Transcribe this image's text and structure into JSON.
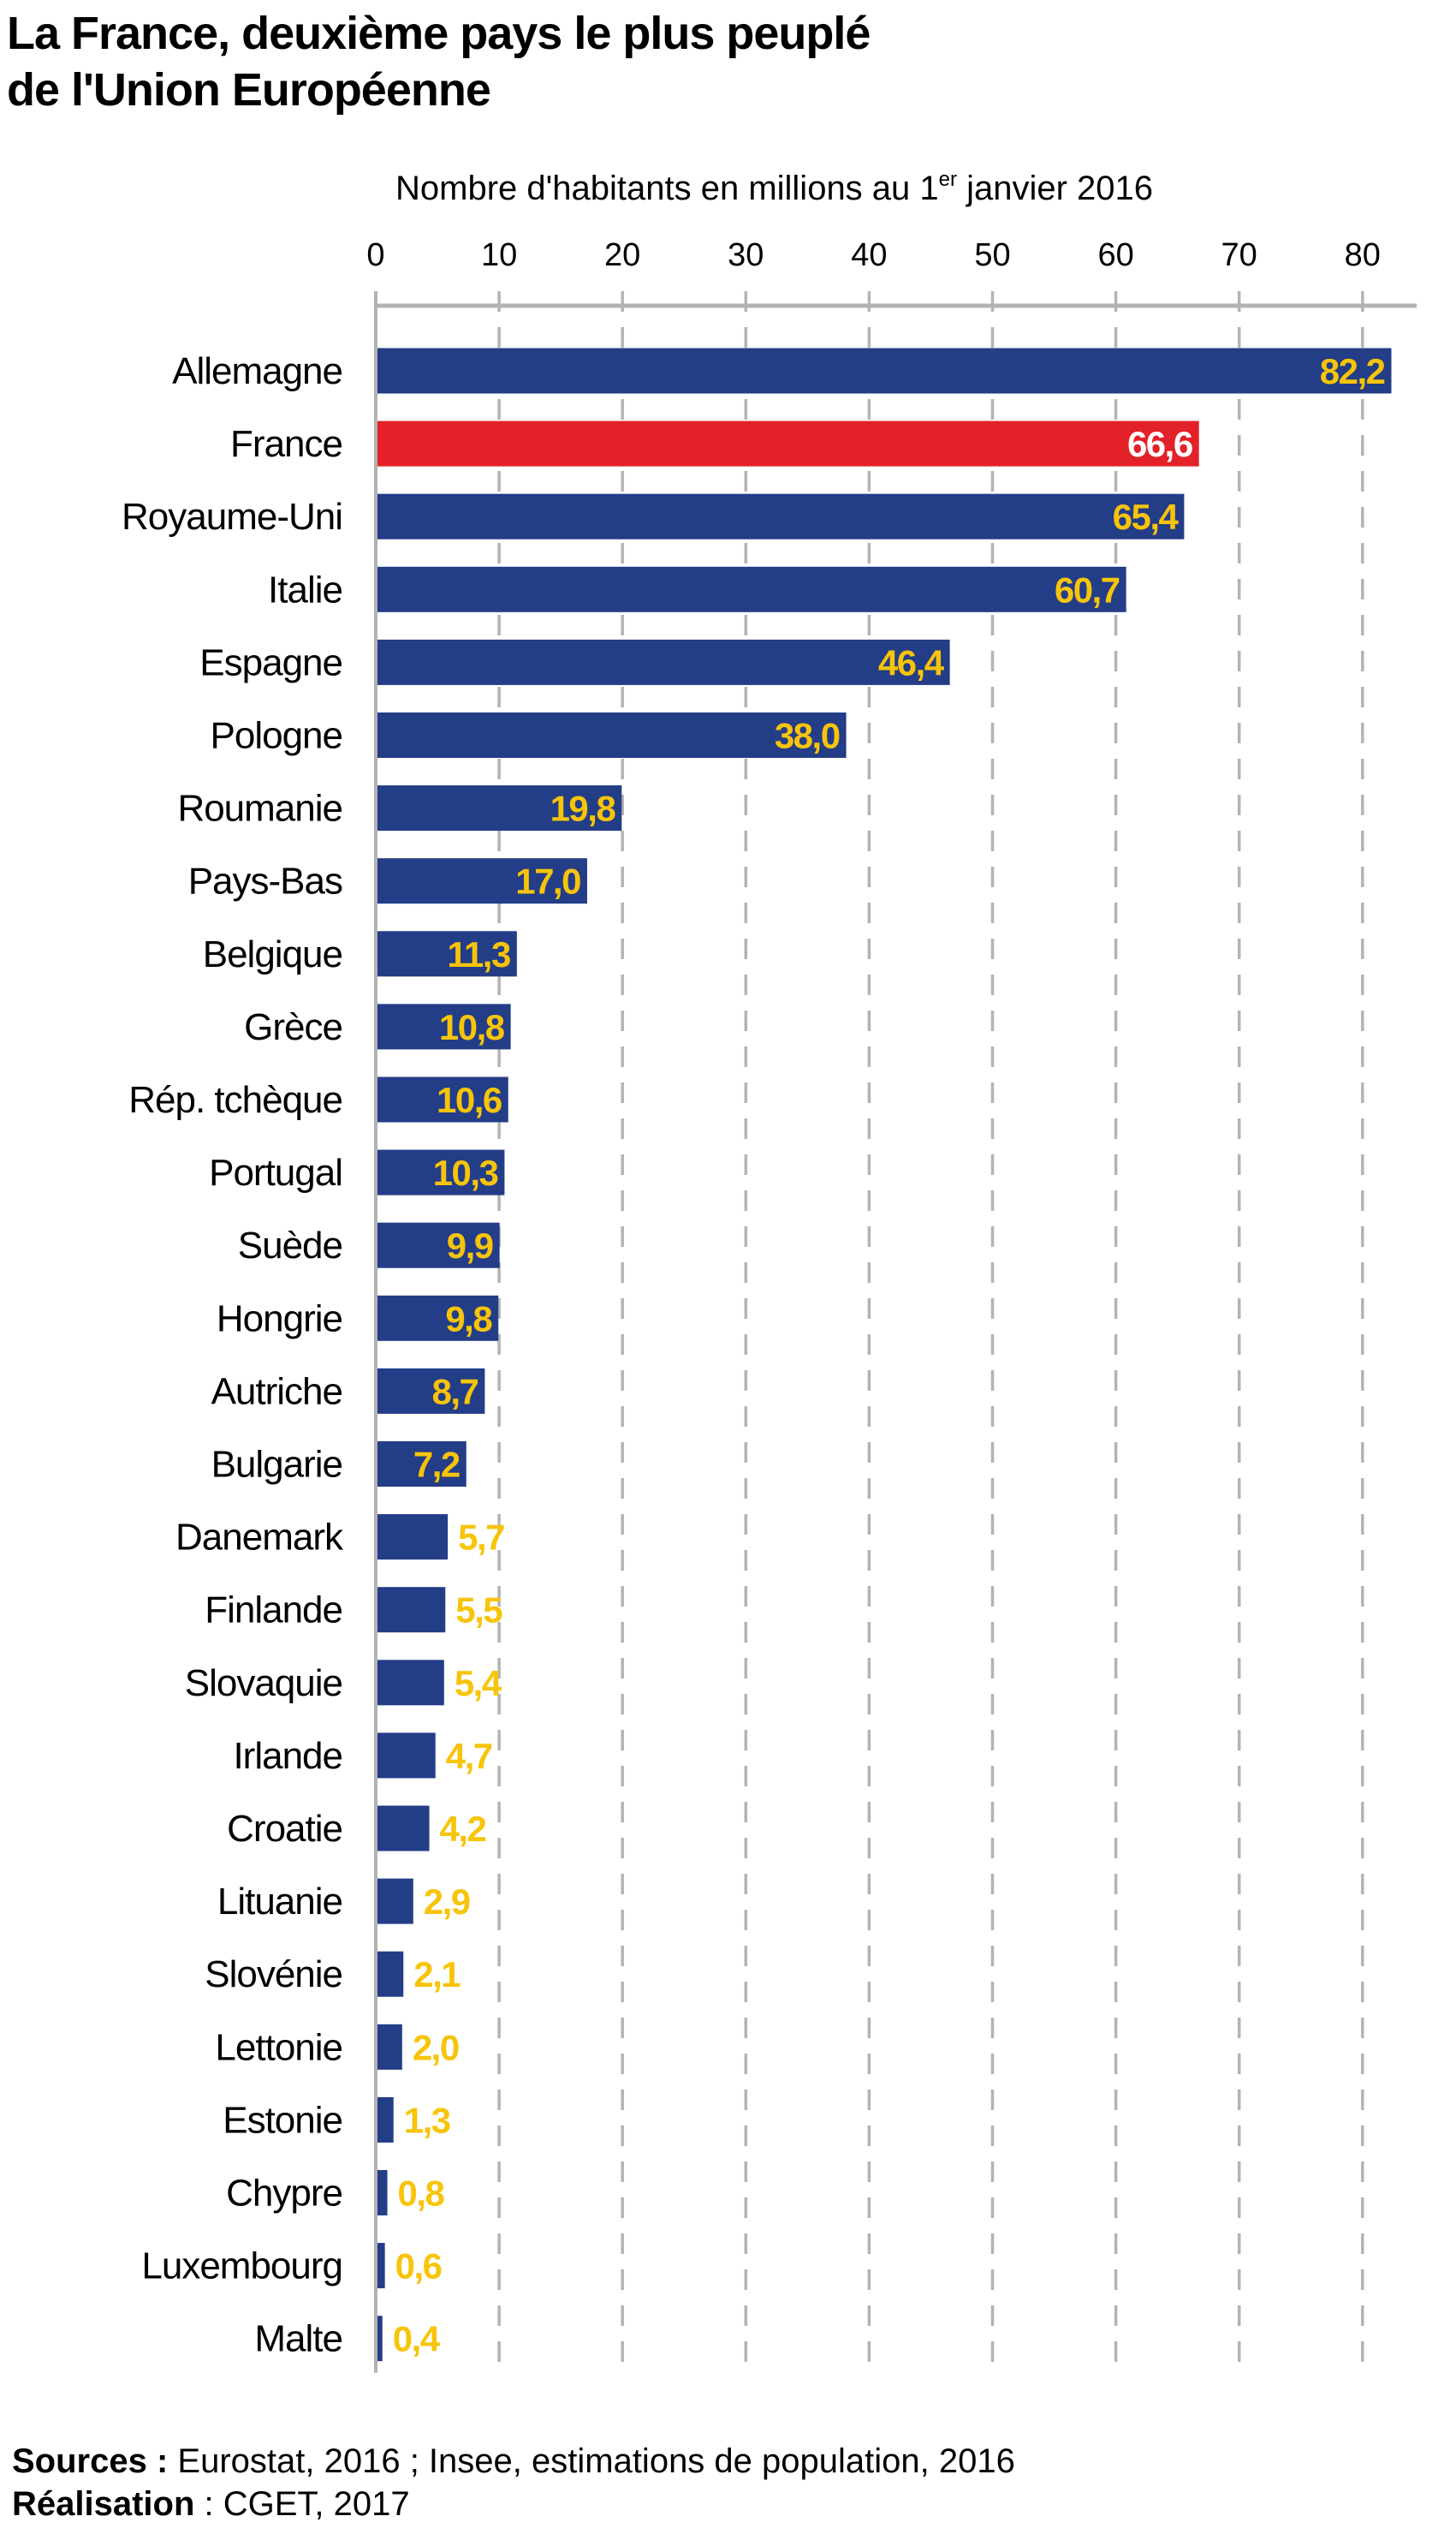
{
  "title": {
    "line1": "La France, deuxième pays le plus peuplé",
    "line2": "de l'Union Européenne"
  },
  "axis_title": {
    "before": "Nombre d'habitants en millions au 1",
    "sup": "er",
    "after": " janvier 2016"
  },
  "footer": {
    "sources_label": "Sources :",
    "sources_text": " Eurostat, 2016 ; Insee, estimations de population, 2016",
    "realisation_label": "Réalisation",
    "realisation_text": " : CGET, 2017"
  },
  "colors": {
    "bar": "#233d87",
    "highlight": "#e32128",
    "label_yellow": "#f7c40a",
    "label_white": "#ffffff",
    "grid": "#b3b3b3"
  },
  "chart_data": {
    "type": "bar",
    "orientation": "horizontal",
    "title": "La France, deuxième pays le plus peuplé de l'Union Européenne",
    "xlabel": "Nombre d'habitants en millions au 1er janvier 2016",
    "ylabel": "",
    "xlim": [
      0,
      84
    ],
    "xticks": [
      0,
      10,
      20,
      30,
      40,
      50,
      60,
      70,
      80
    ],
    "grid": true,
    "highlight": "France",
    "categories": [
      "Allemagne",
      "France",
      "Royaume-Uni",
      "Italie",
      "Espagne",
      "Pologne",
      "Roumanie",
      "Pays-Bas",
      "Belgique",
      "Grèce",
      "Rép. tchèque",
      "Portugal",
      "Suède",
      "Hongrie",
      "Autriche",
      "Bulgarie",
      "Danemark",
      "Finlande",
      "Slovaquie",
      "Irlande",
      "Croatie",
      "Lituanie",
      "Slovénie",
      "Lettonie",
      "Estonie",
      "Chypre",
      "Luxembourg",
      "Malte"
    ],
    "values": [
      82.2,
      66.6,
      65.4,
      60.7,
      46.4,
      38.0,
      19.8,
      17.0,
      11.3,
      10.8,
      10.6,
      10.3,
      9.9,
      9.8,
      8.7,
      7.2,
      5.7,
      5.5,
      5.4,
      4.7,
      4.2,
      2.9,
      2.1,
      2.0,
      1.3,
      0.8,
      0.6,
      0.4
    ],
    "value_labels": [
      "82,2",
      "66,6",
      "65,4",
      "60,7",
      "46,4",
      "38,0",
      "19,8",
      "17,0",
      "11,3",
      "10,8",
      "10,6",
      "10,3",
      "9,9",
      "9,8",
      "8,7",
      "7,2",
      "5,7",
      "5,5",
      "5,4",
      "4,7",
      "4,2",
      "2,9",
      "2,1",
      "2,0",
      "1,3",
      "0,8",
      "0,6",
      "0,4"
    ]
  }
}
